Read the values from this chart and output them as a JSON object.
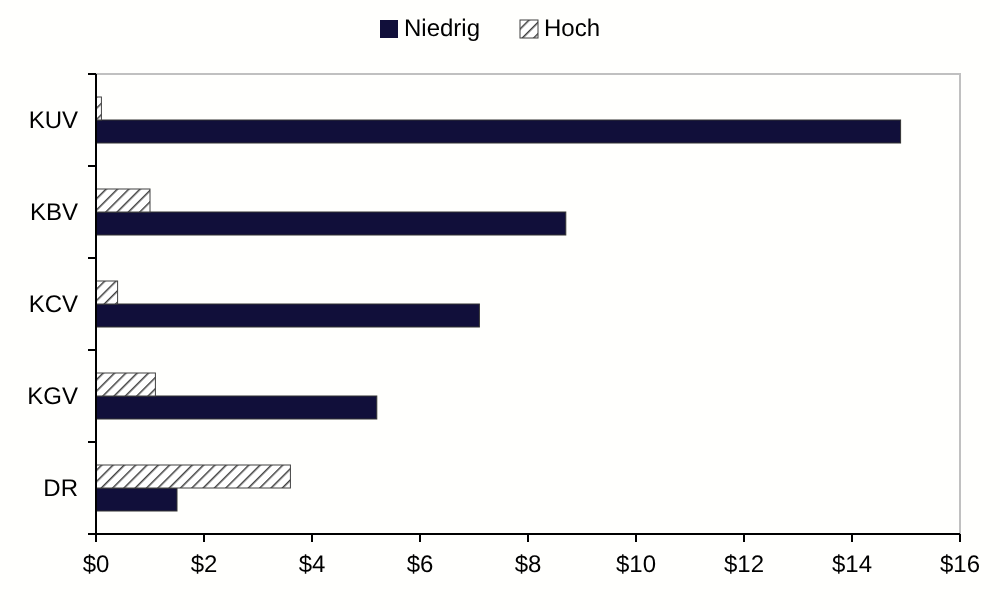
{
  "chart_data": {
    "type": "bar",
    "orientation": "horizontal",
    "categories": [
      "KUV",
      "KBV",
      "KCV",
      "KGV",
      "DR"
    ],
    "series": [
      {
        "name": "Niedrig",
        "color": "#110f3a",
        "values": [
          14.9,
          8.7,
          7.1,
          5.2,
          1.5
        ]
      },
      {
        "name": "Hoch",
        "color": "#404040",
        "values": [
          0.1,
          1.0,
          0.4,
          1.1,
          3.6
        ]
      }
    ],
    "xlim": [
      0,
      16
    ],
    "xticks": [
      {
        "value": 0,
        "label": "$0"
      },
      {
        "value": 2,
        "label": "$2"
      },
      {
        "value": 4,
        "label": "$4"
      },
      {
        "value": 6,
        "label": "$6"
      },
      {
        "value": 8,
        "label": "$8"
      },
      {
        "value": 10,
        "label": "$10"
      },
      {
        "value": 12,
        "label": "$12"
      },
      {
        "value": 14,
        "label": "$14"
      },
      {
        "value": 16,
        "label": "$16"
      }
    ],
    "legend": "top",
    "grid": false
  }
}
